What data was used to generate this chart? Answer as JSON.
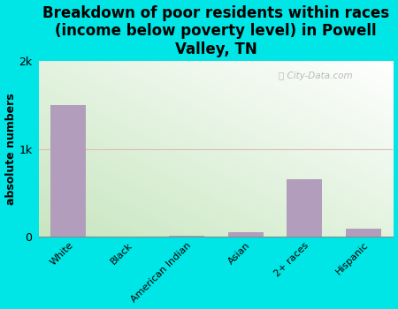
{
  "categories": [
    "White",
    "Black",
    "American Indian",
    "Asian",
    "2+ races",
    "Hispanic"
  ],
  "values": [
    1500,
    3,
    5,
    45,
    650,
    90
  ],
  "bar_color": "#b39dbd",
  "title": "Breakdown of poor residents within races\n(income below poverty level) in Powell\nValley, TN",
  "ylabel": "absolute numbers",
  "ylim": [
    0,
    2000
  ],
  "yticks": [
    0,
    1000,
    2000
  ],
  "ytick_labels": [
    "0",
    "1k",
    "2k"
  ],
  "background_color": "#00e5e5",
  "plot_bg_topleft": "#c8e6c0",
  "plot_bg_bottomright": "#ffffff",
  "watermark": "City-Data.com",
  "title_fontsize": 12,
  "ylabel_fontsize": 9,
  "bar_width": 0.6,
  "grid_color": "#ddbbbb",
  "grid_linewidth": 0.8
}
